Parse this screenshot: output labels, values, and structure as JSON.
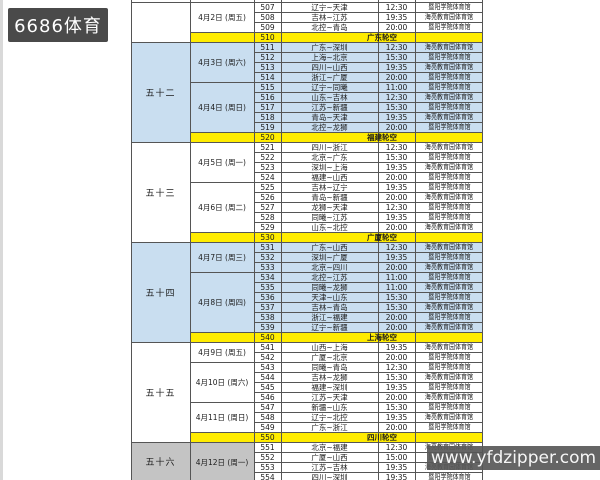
{
  "logo": {
    "text": "6686体育"
  },
  "watermark": {
    "text": "www.yfdzipper.com"
  },
  "colors": {
    "group_blue": "#c9def0",
    "group_gray": "#c4c4c4",
    "bye_yellow": "#ffec00",
    "border": "#555555",
    "logo_bg": "#4a4a4a",
    "watermark_bg": "#585858"
  },
  "table": {
    "first_game_no": 507,
    "week_groups": [
      {
        "label": "",
        "row_start": 507,
        "row_end": 510,
        "shade": "white"
      },
      {
        "label": "五十二",
        "row_start": 511,
        "row_end": 520,
        "shade": "blue"
      },
      {
        "label": "五十三",
        "row_start": 521,
        "row_end": 530,
        "shade": "white"
      },
      {
        "label": "五十四",
        "row_start": 531,
        "row_end": 540,
        "shade": "blue"
      },
      {
        "label": "五十五",
        "row_start": 541,
        "row_end": 550,
        "shade": "white"
      },
      {
        "label": "五十六",
        "row_start": 551,
        "row_end": 554,
        "shade": "gray"
      }
    ],
    "date_groups": [
      {
        "label": "4月2日 (周五)",
        "row_start": 507,
        "row_end": 509
      },
      {
        "label": "4月3日 (周六)",
        "row_start": 511,
        "row_end": 514
      },
      {
        "label": "4月4日 (周日)",
        "row_start": 515,
        "row_end": 519
      },
      {
        "label": "4月5日 (周一)",
        "row_start": 521,
        "row_end": 524
      },
      {
        "label": "4月6日 (周二)",
        "row_start": 525,
        "row_end": 529
      },
      {
        "label": "4月7日 (周三)",
        "row_start": 531,
        "row_end": 533
      },
      {
        "label": "4月8日 (周四)",
        "row_start": 534,
        "row_end": 539
      },
      {
        "label": "4月9日 (周五)",
        "row_start": 541,
        "row_end": 542
      },
      {
        "label": "4月10日 (周六)",
        "row_start": 543,
        "row_end": 546
      },
      {
        "label": "4月11日 (周日)",
        "row_start": 547,
        "row_end": 549
      },
      {
        "label": "4月12日 (周一)",
        "row_start": 551,
        "row_end": 554
      }
    ],
    "rows": [
      {
        "no": "507",
        "teams": "辽宁~天津",
        "time": "12:30",
        "venue": "暨阳学院体育馆"
      },
      {
        "no": "508",
        "teams": "吉林~江苏",
        "time": "19:35",
        "venue": "海亮教育园体育馆"
      },
      {
        "no": "509",
        "teams": "北控~青岛",
        "time": "20:00",
        "venue": "暨阳学院体育馆"
      },
      {
        "no": "510",
        "bye": "广东轮空"
      },
      {
        "no": "511",
        "teams": "广东~深圳",
        "time": "12:30",
        "venue": "海亮教育园体育馆"
      },
      {
        "no": "512",
        "teams": "上海~北京",
        "time": "15:30",
        "venue": "暨阳学院体育馆"
      },
      {
        "no": "513",
        "teams": "四川~山西",
        "time": "19:35",
        "venue": "海亮教育园体育馆"
      },
      {
        "no": "514",
        "teams": "浙江~广厦",
        "time": "20:00",
        "venue": "暨阳学院体育馆"
      },
      {
        "no": "515",
        "teams": "辽宁~同曦",
        "time": "11:00",
        "venue": "暨阳学院体育馆"
      },
      {
        "no": "516",
        "teams": "山东~吉林",
        "time": "12:30",
        "venue": "海亮教育园体育馆"
      },
      {
        "no": "517",
        "teams": "江苏~新疆",
        "time": "15:30",
        "venue": "暨阳学院体育馆"
      },
      {
        "no": "518",
        "teams": "青岛~天津",
        "time": "19:35",
        "venue": "海亮教育园体育馆"
      },
      {
        "no": "519",
        "teams": "北控~龙狮",
        "time": "20:00",
        "venue": "暨阳学院体育馆"
      },
      {
        "no": "520",
        "bye": "福建轮空"
      },
      {
        "no": "521",
        "teams": "四川~浙江",
        "time": "12:30",
        "venue": "海亮教育园体育馆"
      },
      {
        "no": "522",
        "teams": "北京~广东",
        "time": "15:30",
        "venue": "暨阳学院体育馆"
      },
      {
        "no": "523",
        "teams": "深圳~上海",
        "time": "19:35",
        "venue": "海亮教育园体育馆"
      },
      {
        "no": "524",
        "teams": "福建~山西",
        "time": "20:00",
        "venue": "暨阳学院体育馆"
      },
      {
        "no": "525",
        "teams": "吉林~辽宁",
        "time": "19:35",
        "venue": "暨阳学院体育馆"
      },
      {
        "no": "526",
        "teams": "青岛~新疆",
        "time": "20:00",
        "venue": "海亮教育园体育馆"
      },
      {
        "no": "527",
        "teams": "龙狮~天津",
        "time": "12:30",
        "venue": "暨阳学院体育馆"
      },
      {
        "no": "528",
        "teams": "同曦~江苏",
        "time": "19:35",
        "venue": "暨阳学院体育馆"
      },
      {
        "no": "529",
        "teams": "山东~北控",
        "time": "20:00",
        "venue": "海亮教育园体育馆"
      },
      {
        "no": "530",
        "bye": "广厦轮空"
      },
      {
        "no": "531",
        "teams": "广东~山西",
        "time": "12:30",
        "venue": "海亮教育园体育馆"
      },
      {
        "no": "532",
        "teams": "深圳~广厦",
        "time": "19:35",
        "venue": "暨阳学院体育馆"
      },
      {
        "no": "533",
        "teams": "北京~四川",
        "time": "20:00",
        "venue": "海亮教育园体育馆"
      },
      {
        "no": "534",
        "teams": "北控~江苏",
        "time": "11:00",
        "venue": "暨阳学院体育馆"
      },
      {
        "no": "535",
        "teams": "同曦~龙狮",
        "time": "11:00",
        "venue": "海亮教育园体育馆"
      },
      {
        "no": "536",
        "teams": "天津~山东",
        "time": "15:30",
        "venue": "暨阳学院体育馆"
      },
      {
        "no": "537",
        "teams": "吉林~青岛",
        "time": "15:30",
        "venue": "海亮教育园体育馆"
      },
      {
        "no": "538",
        "teams": "浙江~福建",
        "time": "20:00",
        "venue": "暨阳学院体育馆"
      },
      {
        "no": "539",
        "teams": "辽宁~新疆",
        "time": "20:00",
        "venue": "海亮教育园体育馆"
      },
      {
        "no": "540",
        "bye": "上海轮空"
      },
      {
        "no": "541",
        "teams": "山西~上海",
        "time": "19:35",
        "venue": "海亮教育园体育馆"
      },
      {
        "no": "542",
        "teams": "广厦~北京",
        "time": "20:00",
        "venue": "暨阳学院体育馆"
      },
      {
        "no": "543",
        "teams": "同曦~青岛",
        "time": "12:30",
        "venue": "暨阳学院体育馆"
      },
      {
        "no": "544",
        "teams": "吉林~龙狮",
        "time": "15:30",
        "venue": "海亮教育园体育馆"
      },
      {
        "no": "545",
        "teams": "福建~深圳",
        "time": "19:35",
        "venue": "暨阳学院体育馆"
      },
      {
        "no": "546",
        "teams": "江苏~天津",
        "time": "20:00",
        "venue": "海亮教育园体育馆"
      },
      {
        "no": "547",
        "teams": "新疆~山东",
        "time": "15:30",
        "venue": "暨阳学院体育馆"
      },
      {
        "no": "548",
        "teams": "辽宁~北控",
        "time": "19:35",
        "venue": "海亮教育园体育馆"
      },
      {
        "no": "549",
        "teams": "广东~浙江",
        "time": "20:00",
        "venue": "暨阳学院体育馆"
      },
      {
        "no": "550",
        "bye": "四川轮空"
      },
      {
        "no": "551",
        "teams": "北京~福建",
        "time": "12:30",
        "venue": "海亮教育园体育馆"
      },
      {
        "no": "552",
        "teams": "广厦~山西",
        "time": "15:00",
        "venue": "暨阳学院体育馆"
      },
      {
        "no": "553",
        "teams": "江苏~吉林",
        "time": "19:35",
        "venue": "海亮教育园体育馆"
      },
      {
        "no": "554",
        "teams": "四川~深圳",
        "time": "19:35",
        "venue": "暨阳学院体育馆"
      }
    ]
  }
}
